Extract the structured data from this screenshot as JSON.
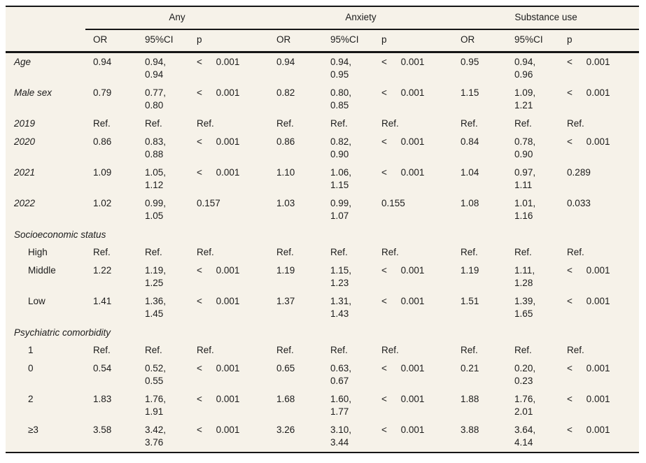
{
  "page": {
    "background": "#ffffff",
    "paper_color": "#f6f2e9",
    "text_color": "#1c1c1c",
    "rule_color": "#161616"
  },
  "table": {
    "column_groups": [
      {
        "label": "Any"
      },
      {
        "label": "Anxiety"
      },
      {
        "label": "Substance use"
      }
    ],
    "sub_headers": [
      "OR",
      "95%CI",
      "p"
    ],
    "rows": [
      {
        "type": "data",
        "label": "Age",
        "italic": true,
        "indent": false,
        "cells": [
          {
            "or": "0.94",
            "ci": "0.94,\n0.94",
            "p": "< 0.001"
          },
          {
            "or": "0.94",
            "ci": "0.94,\n0.95",
            "p": "< 0.001"
          },
          {
            "or": "0.95",
            "ci": "0.94,\n0.96",
            "p": "< 0.001"
          }
        ]
      },
      {
        "type": "data",
        "label": "Male sex",
        "italic": true,
        "indent": false,
        "cells": [
          {
            "or": "0.79",
            "ci": "0.77,\n0.80",
            "p": "< 0.001"
          },
          {
            "or": "0.82",
            "ci": "0.80,\n0.85",
            "p": "< 0.001"
          },
          {
            "or": "1.15",
            "ci": "1.09,\n1.21",
            "p": "< 0.001"
          }
        ]
      },
      {
        "type": "data",
        "label": "2019",
        "italic": true,
        "indent": false,
        "cells": [
          {
            "or": "Ref.",
            "ci": "Ref.",
            "p": "Ref."
          },
          {
            "or": "Ref.",
            "ci": "Ref.",
            "p": "Ref."
          },
          {
            "or": "Ref.",
            "ci": "Ref.",
            "p": "Ref."
          }
        ]
      },
      {
        "type": "data",
        "label": "2020",
        "italic": true,
        "indent": false,
        "cells": [
          {
            "or": "0.86",
            "ci": "0.83,\n0.88",
            "p": "< 0.001"
          },
          {
            "or": "0.86",
            "ci": "0.82,\n0.90",
            "p": "< 0.001"
          },
          {
            "or": "0.84",
            "ci": "0.78,\n0.90",
            "p": "< 0.001"
          }
        ]
      },
      {
        "type": "data",
        "label": "2021",
        "italic": true,
        "indent": false,
        "cells": [
          {
            "or": "1.09",
            "ci": "1.05,\n1.12",
            "p": "< 0.001"
          },
          {
            "or": "1.10",
            "ci": "1.06,\n1.15",
            "p": "< 0.001"
          },
          {
            "or": "1.04",
            "ci": "0.97,\n1.11",
            "p": "0.289"
          }
        ]
      },
      {
        "type": "data",
        "label": "2022",
        "italic": true,
        "indent": false,
        "cells": [
          {
            "or": "1.02",
            "ci": "0.99,\n1.05",
            "p": "0.157"
          },
          {
            "or": "1.03",
            "ci": "0.99,\n1.07",
            "p": "0.155"
          },
          {
            "or": "1.08",
            "ci": "1.01,\n1.16",
            "p": "0.033"
          }
        ]
      },
      {
        "type": "section",
        "label": "Socioeconomic status"
      },
      {
        "type": "data",
        "label": "High",
        "italic": false,
        "indent": true,
        "cells": [
          {
            "or": "Ref.",
            "ci": "Ref.",
            "p": "Ref."
          },
          {
            "or": "Ref.",
            "ci": "Ref.",
            "p": "Ref."
          },
          {
            "or": "Ref.",
            "ci": "Ref.",
            "p": "Ref."
          }
        ]
      },
      {
        "type": "data",
        "label": "Middle",
        "italic": false,
        "indent": true,
        "cells": [
          {
            "or": "1.22",
            "ci": "1.19,\n1.25",
            "p": "< 0.001"
          },
          {
            "or": "1.19",
            "ci": "1.15,\n1.23",
            "p": "< 0.001"
          },
          {
            "or": "1.19",
            "ci": "1.11,\n1.28",
            "p": "< 0.001"
          }
        ]
      },
      {
        "type": "data",
        "label": "Low",
        "italic": false,
        "indent": true,
        "cells": [
          {
            "or": "1.41",
            "ci": "1.36,\n1.45",
            "p": "< 0.001"
          },
          {
            "or": "1.37",
            "ci": "1.31,\n1.43",
            "p": "< 0.001"
          },
          {
            "or": "1.51",
            "ci": "1.39,\n1.65",
            "p": "< 0.001"
          }
        ]
      },
      {
        "type": "section",
        "label": "Psychiatric comorbidity"
      },
      {
        "type": "data",
        "label": "1",
        "italic": false,
        "indent": true,
        "cells": [
          {
            "or": "Ref.",
            "ci": "Ref.",
            "p": "Ref."
          },
          {
            "or": "Ref.",
            "ci": "Ref.",
            "p": "Ref."
          },
          {
            "or": "Ref.",
            "ci": "Ref.",
            "p": "Ref."
          }
        ]
      },
      {
        "type": "data",
        "label": "0",
        "italic": false,
        "indent": true,
        "cells": [
          {
            "or": "0.54",
            "ci": "0.52,\n0.55",
            "p": "< 0.001"
          },
          {
            "or": "0.65",
            "ci": "0.63,\n0.67",
            "p": "< 0.001"
          },
          {
            "or": "0.21",
            "ci": "0.20,\n0.23",
            "p": "< 0.001"
          }
        ]
      },
      {
        "type": "data",
        "label": "2",
        "italic": false,
        "indent": true,
        "cells": [
          {
            "or": "1.83",
            "ci": "1.76,\n1.91",
            "p": "< 0.001"
          },
          {
            "or": "1.68",
            "ci": "1.60,\n1.77",
            "p": "< 0.001"
          },
          {
            "or": "1.88",
            "ci": "1.76,\n2.01",
            "p": "< 0.001"
          }
        ]
      },
      {
        "type": "data",
        "label": "≥3",
        "italic": false,
        "indent": true,
        "cells": [
          {
            "or": "3.58",
            "ci": "3.42,\n3.76",
            "p": "< 0.001"
          },
          {
            "or": "3.26",
            "ci": "3.10,\n3.44",
            "p": "< 0.001"
          },
          {
            "or": "3.88",
            "ci": "3.64,\n4.14",
            "p": "< 0.001"
          }
        ]
      }
    ]
  }
}
